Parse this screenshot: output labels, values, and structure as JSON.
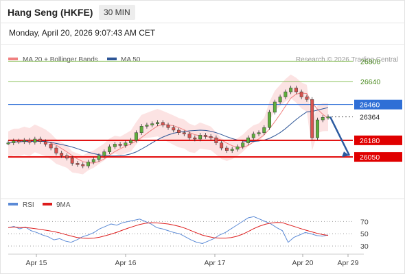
{
  "header": {
    "title": "Hang Seng (HKFE)",
    "timeframe": "30 MIN",
    "datetime": "Monday, April 20, 2026 9:07:43 AM CET"
  },
  "legend": {
    "bb_label": "MA 20 + Bollinger Bands",
    "ma50_label": "MA 50",
    "credit": "Research © 2026 Trading Central",
    "rsi_label": "RSI",
    "ma9_label": "9MA"
  },
  "colors": {
    "bb": "#f08080",
    "ma50": "#2d5596",
    "resistance": "#e00000",
    "pivot": "#2f6fd6",
    "target_green": "#8ac15a",
    "rsi": "#5b8ad6",
    "ma9": "#dd1c1c",
    "candle_up": "#5fae3c",
    "candle_down": "#d9534f",
    "arrow": "#2b5aa0"
  },
  "chart_data": {
    "type": "candlestick",
    "x_ticks": [
      "Apr 15",
      "Apr 16",
      "Apr 17",
      "Apr 20",
      "Apr 29"
    ],
    "y_range": [
      25750,
      26850
    ],
    "levels": [
      {
        "value": 26800,
        "label": "26800",
        "kind": "target"
      },
      {
        "value": 26640,
        "label": "26640",
        "kind": "target"
      },
      {
        "value": 26460,
        "label": "26460",
        "kind": "pivot"
      },
      {
        "value": 26364,
        "label": "26364",
        "kind": "last"
      },
      {
        "value": 26180,
        "label": "26180",
        "kind": "support"
      },
      {
        "value": 26050,
        "label": "26050",
        "kind": "support"
      }
    ],
    "close_series": [
      26160,
      26175,
      26170,
      26180,
      26165,
      26190,
      26170,
      26150,
      26120,
      26080,
      26060,
      26040,
      26000,
      25990,
      25980,
      26010,
      26030,
      26060,
      26090,
      26130,
      26150,
      26140,
      26160,
      26180,
      26240,
      26290,
      26300,
      26310,
      26320,
      26300,
      26280,
      26260,
      26240,
      26230,
      26200,
      26190,
      26220,
      26210,
      26200,
      26160,
      26120,
      26100,
      26110,
      26130,
      26160,
      26200,
      26230,
      26240,
      26280,
      26400,
      26480,
      26520,
      26560,
      26590,
      26560,
      26520,
      26500,
      26200,
      26340,
      26360,
      26364
    ],
    "rsi": {
      "series": [
        60,
        62,
        58,
        61,
        55,
        52,
        48,
        45,
        40,
        42,
        38,
        36,
        40,
        45,
        48,
        52,
        58,
        62,
        66,
        64,
        68,
        70,
        72,
        74,
        70,
        66,
        60,
        58,
        55,
        52,
        50,
        45,
        40,
        36,
        34,
        38,
        42,
        48,
        52,
        58,
        64,
        70,
        76,
        78,
        74,
        70,
        66,
        60,
        55,
        36,
        44,
        48,
        52,
        50,
        47,
        46,
        48
      ],
      "levels": [
        70,
        50,
        30
      ],
      "range": [
        20,
        85
      ]
    },
    "projection": {
      "from": 26364,
      "to": 26050
    }
  }
}
